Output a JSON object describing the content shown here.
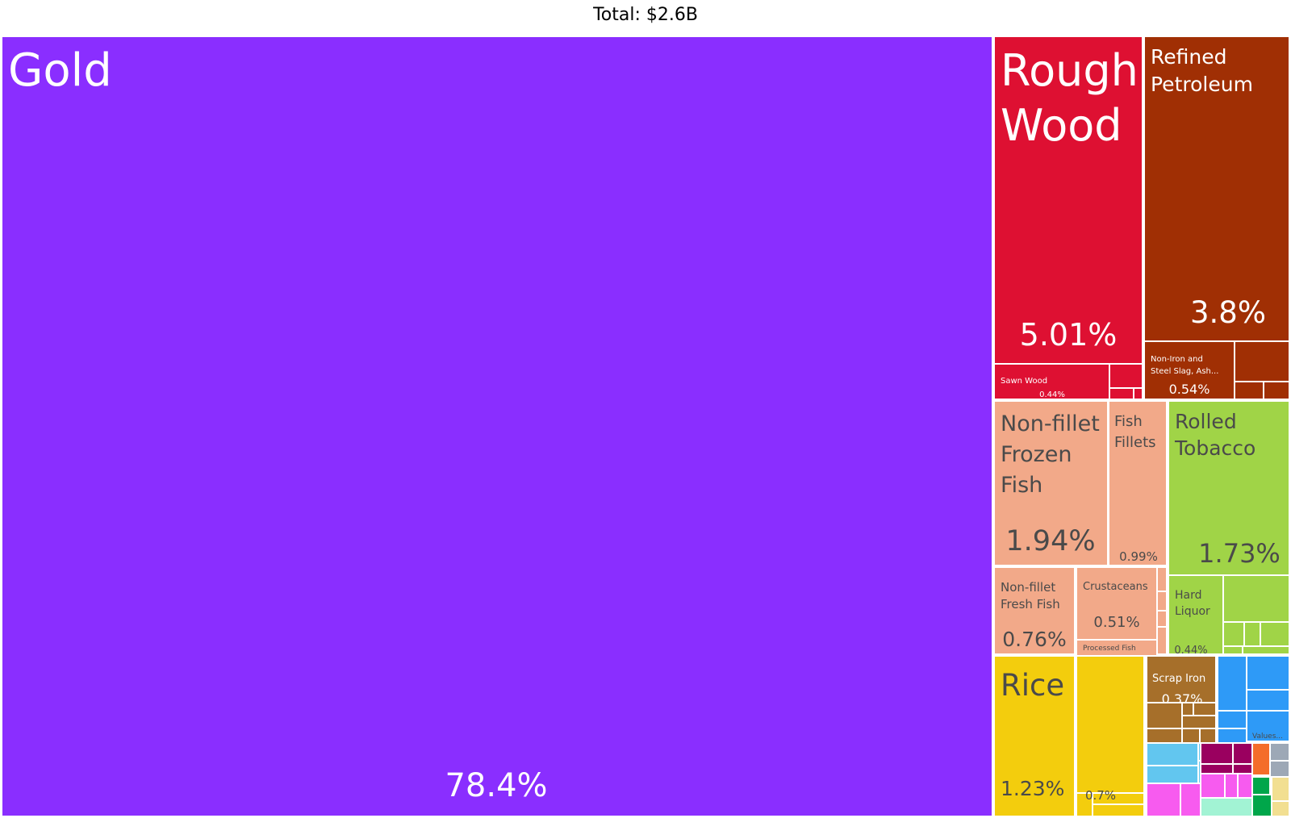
{
  "header": {
    "total_label": "Total: $2.6B"
  },
  "chart_data": {
    "type": "treemap",
    "title": "Total: $2.6B",
    "unit": "percent of total exports",
    "colors": {
      "gold": "#8a2eff",
      "wood": "#de1032",
      "mineral": "#a02f04",
      "animal": "#f2a989",
      "vegetable_foodstuffs": "#a0d447",
      "vegetable": "#f3cd0d",
      "metal": "#a66f2a",
      "machines": "#2e9af7",
      "instruments": "#9a005f",
      "chemicals": "#f75bef",
      "textiles": "#00a64a",
      "transport": "#f46d2a",
      "paper": "#f2df91",
      "plastics": "#9da8b6",
      "stone": "#a2f3d4",
      "misc": "#62c6ef"
    },
    "items": [
      {
        "name": "Gold",
        "value": 78.4,
        "value_label": "78.4%"
      },
      {
        "name": "Rough Wood",
        "value": 5.01,
        "value_label": "5.01%"
      },
      {
        "name": "Refined Petroleum",
        "value": 3.8,
        "value_label": "3.8%"
      },
      {
        "name": "Non-fillet Frozen Fish",
        "value": 1.94,
        "value_label": "1.94%"
      },
      {
        "name": "Rolled Tobacco",
        "value": 1.73,
        "value_label": "1.73%"
      },
      {
        "name": "Rice",
        "value": 1.23,
        "value_label": "1.23%"
      },
      {
        "name": "Fish Fillets",
        "value": 0.99,
        "value_label": "0.99%"
      },
      {
        "name": "Non-fillet Fresh Fish",
        "value": 0.76,
        "value_label": "0.76%"
      },
      {
        "name": "",
        "value": 0.7,
        "value_label": "0.7%"
      },
      {
        "name": "Non-Iron and Steel Slag, Ash...",
        "value": 0.54,
        "value_label": "0.54%"
      },
      {
        "name": "Crustaceans",
        "value": 0.51,
        "value_label": "0.51%"
      },
      {
        "name": "Sawn Wood",
        "value": 0.44,
        "value_label": "0.44%"
      },
      {
        "name": "Hard Liquor",
        "value": 0.44,
        "value_label": "0.44%"
      },
      {
        "name": "Scrap Iron",
        "value": 0.37,
        "value_label": "0.37%"
      },
      {
        "name": "Processed Fish",
        "value": null,
        "value_label": ""
      },
      {
        "name": "Values...",
        "value": null,
        "value_label": ""
      }
    ]
  }
}
